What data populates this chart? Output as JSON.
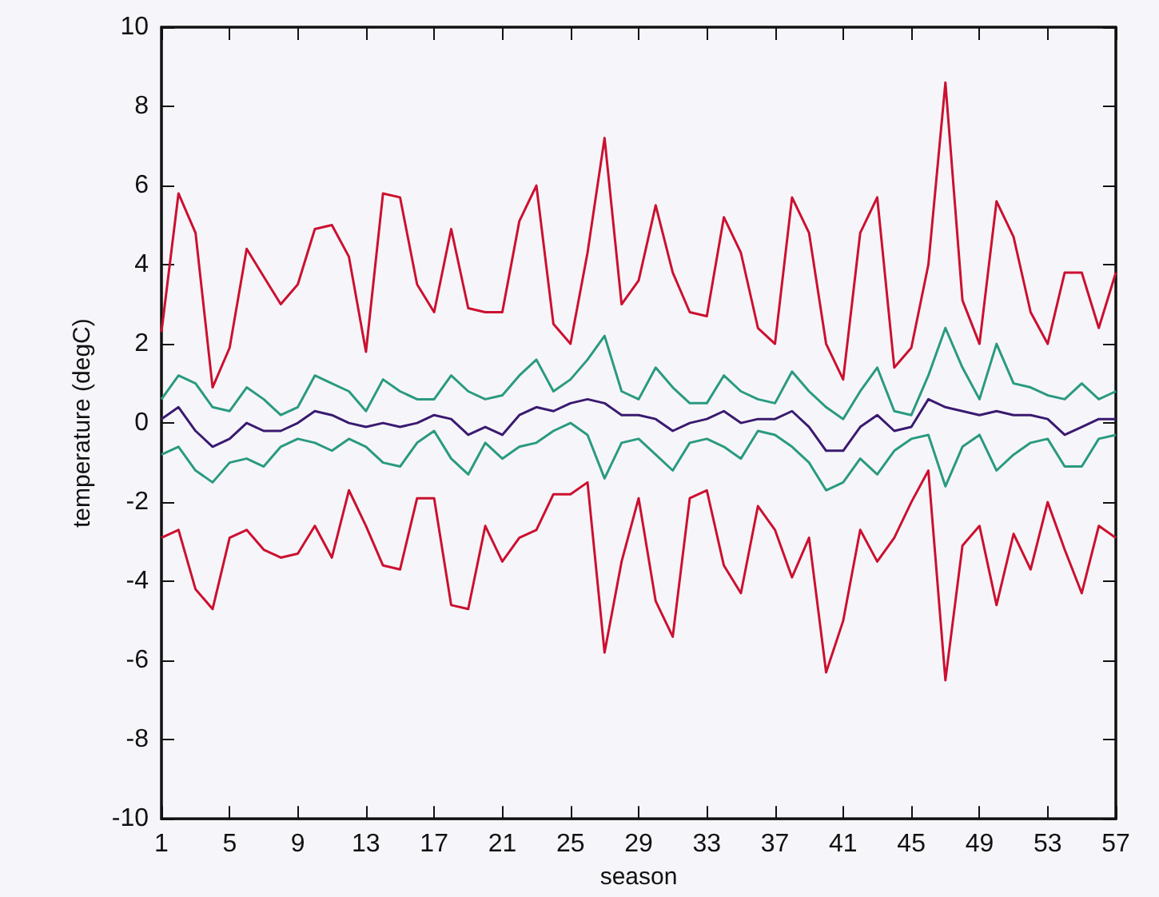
{
  "chart_data": {
    "type": "line",
    "xlabel": "season",
    "ylabel": "temperature (degC)",
    "x": [
      1,
      2,
      3,
      4,
      5,
      6,
      7,
      8,
      9,
      10,
      11,
      12,
      13,
      14,
      15,
      16,
      17,
      18,
      19,
      20,
      21,
      22,
      23,
      24,
      25,
      26,
      27,
      28,
      29,
      30,
      31,
      32,
      33,
      34,
      35,
      36,
      37,
      38,
      39,
      40,
      41,
      42,
      43,
      44,
      45,
      46,
      47,
      48,
      49,
      50,
      51,
      52,
      53,
      54,
      55,
      56,
      57
    ],
    "xlim": [
      1,
      57
    ],
    "xticks": [
      1,
      5,
      9,
      13,
      17,
      21,
      25,
      29,
      33,
      37,
      41,
      45,
      49,
      53,
      57
    ],
    "ylim": [
      -10,
      10
    ],
    "yticks": [
      -10,
      -8,
      -6,
      -4,
      -2,
      0,
      2,
      4,
      6,
      8,
      10
    ],
    "marker": "none",
    "line_style": "solid",
    "grid": false,
    "series": [
      {
        "color": "#cc1030",
        "values": [
          2.3,
          5.8,
          4.8,
          0.9,
          1.9,
          4.4,
          3.7,
          3.0,
          3.5,
          4.9,
          5.0,
          4.2,
          1.8,
          5.8,
          5.7,
          3.5,
          2.8,
          4.9,
          2.9,
          2.8,
          2.8,
          5.1,
          6.0,
          2.5,
          2.0,
          4.3,
          7.2,
          3.0,
          3.6,
          5.5,
          3.8,
          2.8,
          2.7,
          5.2,
          4.3,
          2.4,
          2.0,
          5.7,
          4.8,
          2.0,
          1.1,
          4.8,
          5.7,
          1.4,
          1.9,
          4.0,
          8.6,
          3.1,
          2.0,
          5.6,
          4.7,
          2.8,
          2.0,
          3.8,
          3.8,
          2.4,
          3.8
        ]
      },
      {
        "color": "#2a9a80",
        "values": [
          0.6,
          1.2,
          1.0,
          0.4,
          0.3,
          0.9,
          0.6,
          0.2,
          0.4,
          1.2,
          1.0,
          0.8,
          0.3,
          1.1,
          0.8,
          0.6,
          0.6,
          1.2,
          0.8,
          0.6,
          0.7,
          1.2,
          1.6,
          0.8,
          1.1,
          1.6,
          2.2,
          0.8,
          0.6,
          1.4,
          0.9,
          0.5,
          0.5,
          1.2,
          0.8,
          0.6,
          0.5,
          1.3,
          0.8,
          0.4,
          0.1,
          0.8,
          1.4,
          0.3,
          0.2,
          1.2,
          2.4,
          1.4,
          0.6,
          2.0,
          1.0,
          0.9,
          0.7,
          0.6,
          1.0,
          0.6,
          0.8
        ]
      },
      {
        "color": "#3a1a70",
        "values": [
          0.1,
          0.4,
          -0.2,
          -0.6,
          -0.4,
          0.0,
          -0.2,
          -0.2,
          0.0,
          0.3,
          0.2,
          0.0,
          -0.1,
          0.0,
          -0.1,
          0.0,
          0.2,
          0.1,
          -0.3,
          -0.1,
          -0.3,
          0.2,
          0.4,
          0.3,
          0.5,
          0.6,
          0.5,
          0.2,
          0.2,
          0.1,
          -0.2,
          0.0,
          0.1,
          0.3,
          0.0,
          0.1,
          0.1,
          0.3,
          -0.1,
          -0.7,
          -0.7,
          -0.1,
          0.2,
          -0.2,
          -0.1,
          0.6,
          0.4,
          0.3,
          0.2,
          0.3,
          0.2,
          0.2,
          0.1,
          -0.3,
          -0.1,
          0.1,
          0.1
        ]
      },
      {
        "color": "#2a9a80",
        "values": [
          -0.8,
          -0.6,
          -1.2,
          -1.5,
          -1.0,
          -0.9,
          -1.1,
          -0.6,
          -0.4,
          -0.5,
          -0.7,
          -0.4,
          -0.6,
          -1.0,
          -1.1,
          -0.5,
          -0.2,
          -0.9,
          -1.3,
          -0.5,
          -0.9,
          -0.6,
          -0.5,
          -0.2,
          0.0,
          -0.3,
          -1.4,
          -0.5,
          -0.4,
          -0.8,
          -1.2,
          -0.5,
          -0.4,
          -0.6,
          -0.9,
          -0.2,
          -0.3,
          -0.6,
          -1.0,
          -1.7,
          -1.5,
          -0.9,
          -1.3,
          -0.7,
          -0.4,
          -0.3,
          -1.6,
          -0.6,
          -0.3,
          -1.2,
          -0.8,
          -0.5,
          -0.4,
          -1.1,
          -1.1,
          -0.4,
          -0.3
        ]
      },
      {
        "color": "#cc1030",
        "values": [
          -2.9,
          -2.7,
          -4.2,
          -4.7,
          -2.9,
          -2.7,
          -3.2,
          -3.4,
          -3.3,
          -2.6,
          -3.4,
          -1.7,
          -2.6,
          -3.6,
          -3.7,
          -1.9,
          -1.9,
          -4.6,
          -4.7,
          -2.6,
          -3.5,
          -2.9,
          -2.7,
          -1.8,
          -1.8,
          -1.5,
          -5.8,
          -3.5,
          -1.9,
          -4.5,
          -5.4,
          -1.9,
          -1.7,
          -3.6,
          -4.3,
          -2.1,
          -2.7,
          -3.9,
          -2.9,
          -6.3,
          -5.0,
          -2.7,
          -3.5,
          -2.9,
          -2.0,
          -1.2,
          -6.5,
          -3.1,
          -2.6,
          -4.6,
          -2.8,
          -3.7,
          -2.0,
          -3.2,
          -4.3,
          -2.6,
          -2.9
        ]
      }
    ]
  }
}
